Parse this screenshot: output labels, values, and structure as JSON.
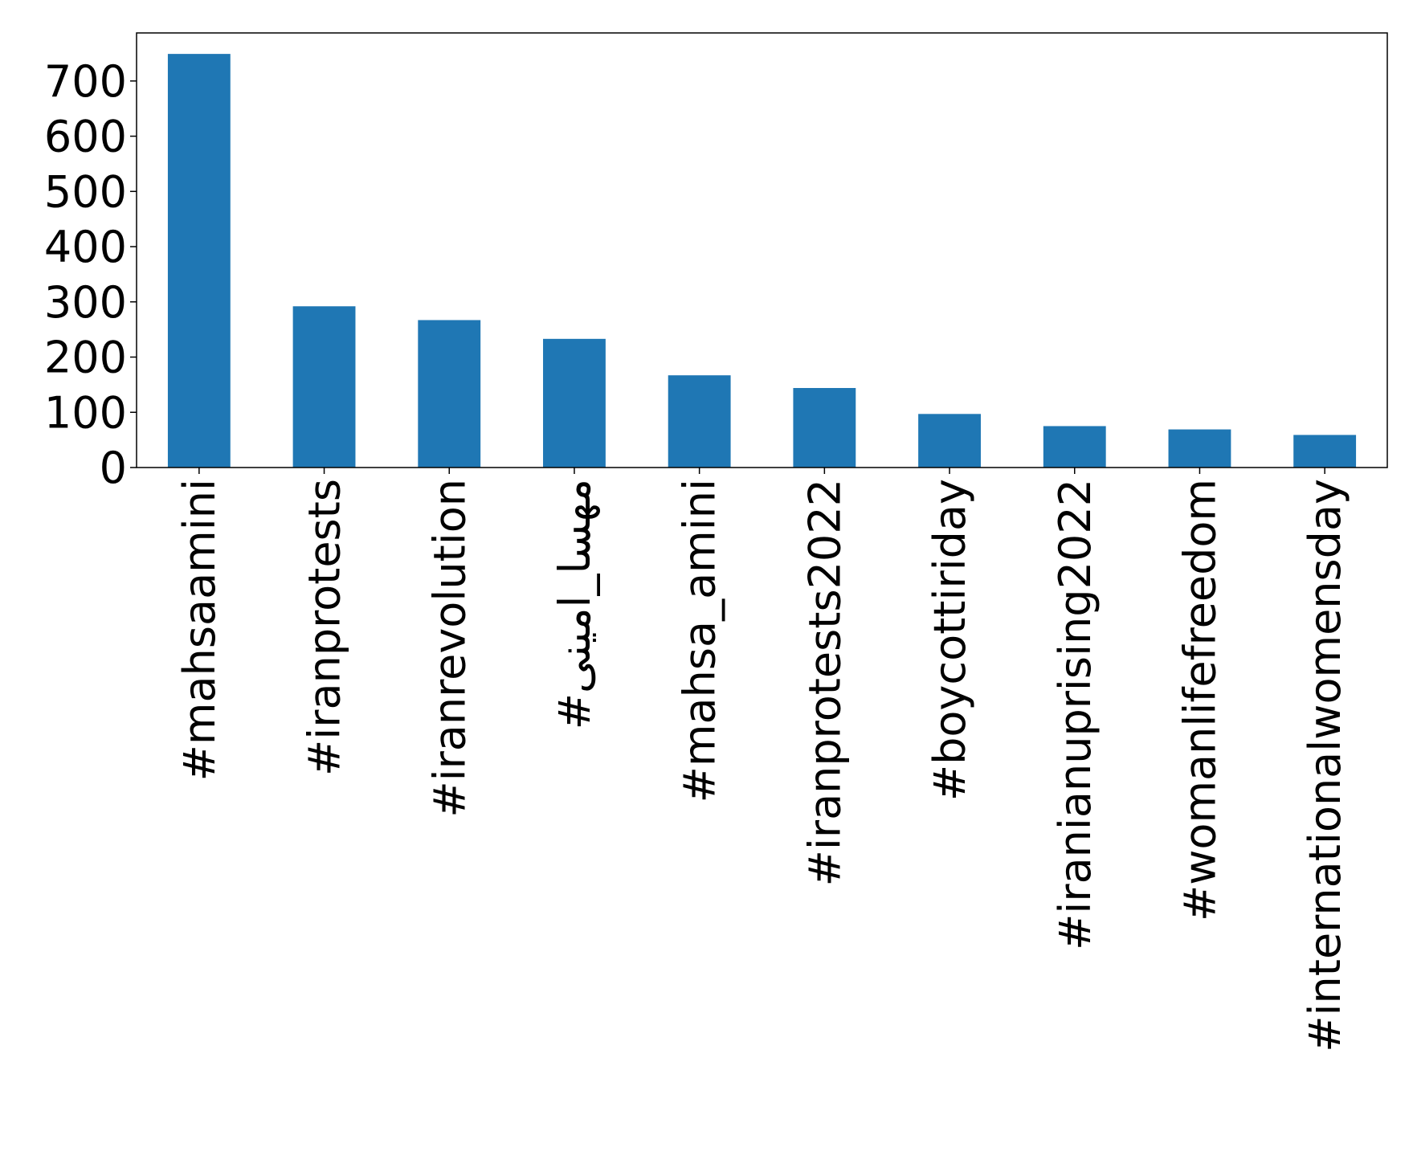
{
  "chart_data": {
    "type": "bar",
    "categories": [
      "#mahsaamini",
      "#iranprotests",
      "#iranrevolution",
      "#مهسا_امینی",
      "#mahsa_amini",
      "#iranprotests2022",
      "#boycottiriday",
      "#iranianuprising2022",
      "#womanlifefreedom",
      "#internationalwomensday"
    ],
    "values": [
      749,
      292,
      267,
      233,
      167,
      144,
      97,
      75,
      69,
      59
    ],
    "color": "#1f77b4",
    "ylim": [
      0,
      787
    ],
    "yticks": [
      0,
      100,
      200,
      300,
      400,
      500,
      600,
      700
    ],
    "grid": false
  }
}
